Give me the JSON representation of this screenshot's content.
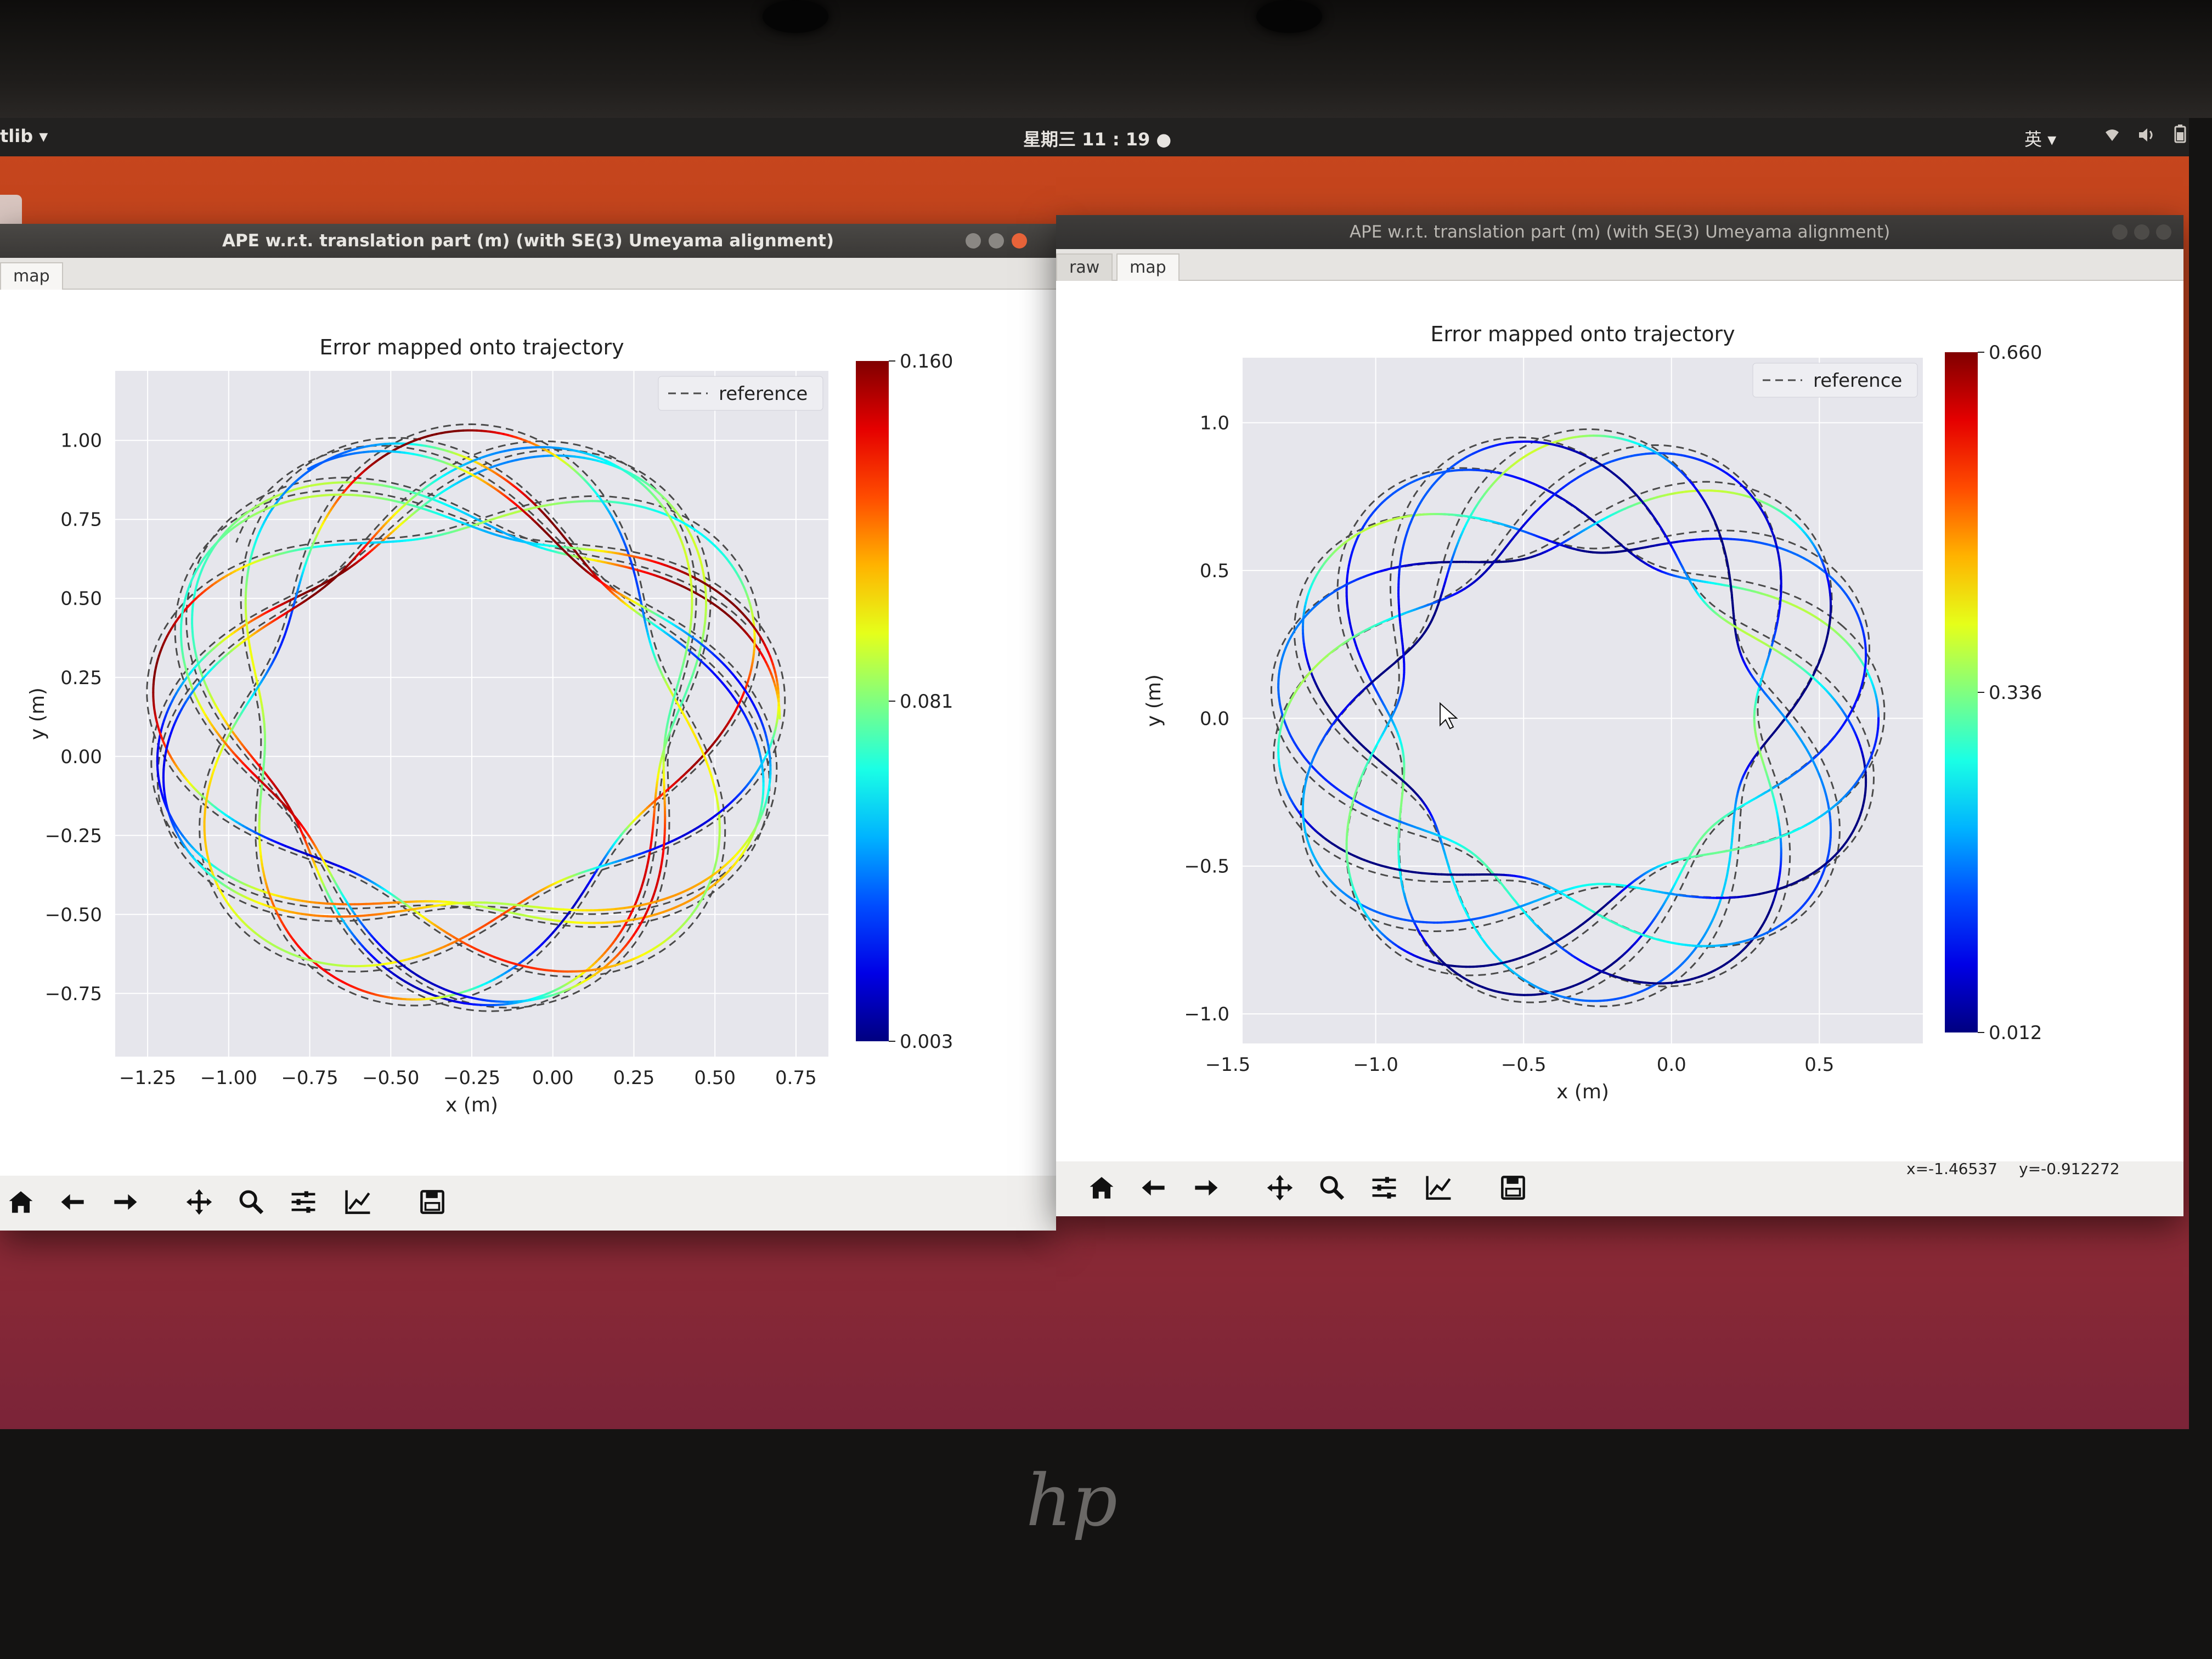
{
  "topbar": {
    "app_menu": "tlib ▾",
    "clock": "星期三 11 : 19 ●",
    "input_method": "英 ▾",
    "tray_icons": [
      "wifi-icon",
      "volume-icon",
      "battery-icon"
    ]
  },
  "window_left": {
    "title": "APE w.r.t. translation part (m) (with SE(3) Umeyama alignment)",
    "tabs": [
      {
        "label": "map",
        "active": true
      }
    ],
    "toolbar_icons": [
      "home-icon",
      "back-arrow-icon",
      "forward-arrow-icon",
      "pan-icon",
      "zoom-icon",
      "subplots-icon",
      "axes-edit-icon",
      "save-icon"
    ]
  },
  "window_right": {
    "title": "APE w.r.t. translation part (m) (with SE(3) Umeyama alignment)",
    "tabs": [
      {
        "label": "raw",
        "active": false
      },
      {
        "label": "map",
        "active": true
      }
    ],
    "coordinates": {
      "x": "x=-1.46537",
      "y": "y=-0.912272"
    },
    "toolbar_icons": [
      "home-icon",
      "back-arrow-icon",
      "forward-arrow-icon",
      "pan-icon",
      "zoom-icon",
      "subplots-icon",
      "axes-edit-icon",
      "save-icon"
    ]
  },
  "colors": {
    "plot_background": "#e6e6ec",
    "reference_line": "#4a4a4a",
    "window_close": "#e9643a"
  },
  "chart_data": [
    {
      "type": "line",
      "title": "Error mapped onto trajectory",
      "xlabel": "x (m)",
      "ylabel": "y (m)",
      "xticks": [
        "−1.25",
        "−1.00",
        "−0.75",
        "−0.50",
        "−0.25",
        "0.00",
        "0.25",
        "0.50",
        "0.75"
      ],
      "yticks": [
        "1.00",
        "0.75",
        "0.50",
        "0.25",
        "0.00",
        "−0.25",
        "−0.50",
        "−0.75"
      ],
      "xlim": [
        -1.35,
        0.85
      ],
      "ylim": [
        -0.95,
        1.22
      ],
      "legend": {
        "entries": [
          "reference"
        ],
        "position": "top-right",
        "style": "dashed"
      },
      "grid": true,
      "colorbar": {
        "min": "0.003",
        "mid": "0.081",
        "max": "0.160",
        "colormap": "jet"
      },
      "trajectory": {
        "center": [
          -0.27,
          0.12
        ],
        "radius_inner": 0.62,
        "radius_outer": 0.97,
        "loops": 22,
        "lobes": 19
      }
    },
    {
      "type": "line",
      "title": "Error mapped onto trajectory",
      "xlabel": "x (m)",
      "ylabel": "y (m)",
      "xticks": [
        "−1.5",
        "−1.0",
        "−0.5",
        "0.0",
        "0.5"
      ],
      "yticks": [
        "1.0",
        "0.5",
        "0.0",
        "−0.5",
        "−1.0"
      ],
      "xlim": [
        -1.45,
        0.85
      ],
      "ylim": [
        -1.1,
        1.22
      ],
      "legend": {
        "entries": [
          "reference"
        ],
        "position": "top-right",
        "style": "dashed"
      },
      "grid": true,
      "colorbar": {
        "min": "0.012",
        "mid": "0.336",
        "max": "0.660",
        "colormap": "jet"
      },
      "trajectory": {
        "center": [
          -0.32,
          0.0
        ],
        "radius_inner": 0.6,
        "radius_outer": 1.02,
        "loops": 18,
        "lobes": 17
      }
    }
  ],
  "laptop": {
    "logo": "hp"
  }
}
